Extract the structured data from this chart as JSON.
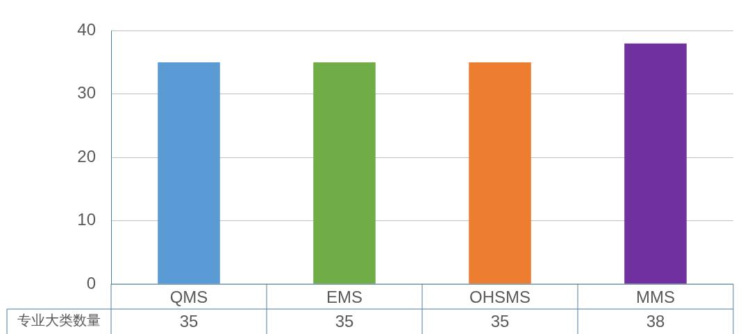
{
  "chart_data": {
    "type": "bar",
    "categories": [
      "QMS",
      "EMS",
      "OHSMS",
      "MMS"
    ],
    "series": [
      {
        "name": "专业大类数量",
        "colors": [
          "#5b9bd5",
          "#70ad47",
          "#ed7d31",
          "#7030a0"
        ],
        "values": [
          35,
          35,
          35,
          38
        ]
      }
    ],
    "ylim": [
      0,
      40
    ],
    "yticks": [
      0,
      10,
      20,
      30,
      40
    ],
    "grid": "y",
    "legend": false,
    "data_labels": true
  }
}
